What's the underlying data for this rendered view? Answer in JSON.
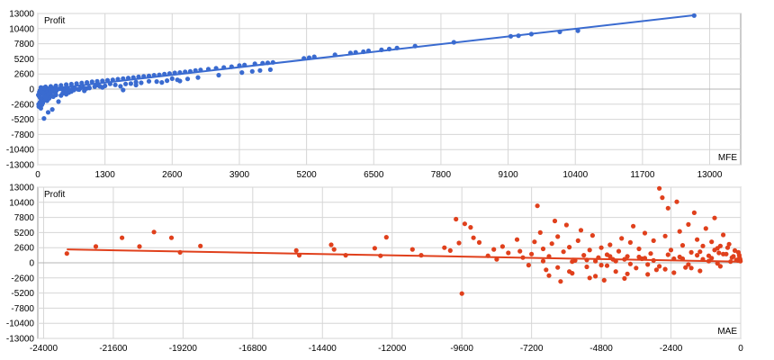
{
  "chart_data": [
    {
      "type": "scatter",
      "color": "#3a6bd0",
      "trendline_color": "#3a6bd0",
      "xlabel": "MFE",
      "ylabel": "Profit",
      "xlim": [
        0,
        13600
      ],
      "ylim": [
        -13000,
        13000
      ],
      "x_ticks": [
        "0",
        "1300",
        "2600",
        "3900",
        "5200",
        "6500",
        "7800",
        "9100",
        "10400",
        "11700",
        "13000"
      ],
      "y_ticks": [
        "13000",
        "10400",
        "7800",
        "5200",
        "2600",
        "0",
        "-2600",
        "-5200",
        "-7800",
        "-10400",
        "-13000"
      ],
      "grid": true,
      "trendline": [
        [
          0,
          -200
        ],
        [
          12700,
          12700
        ]
      ],
      "points": [
        [
          12700,
          12650
        ],
        [
          10450,
          10050
        ],
        [
          10100,
          9850
        ],
        [
          9550,
          9450
        ],
        [
          9300,
          9180
        ],
        [
          9150,
          9080
        ],
        [
          8050,
          8050
        ],
        [
          7300,
          7400
        ],
        [
          6950,
          7080
        ],
        [
          6800,
          6880
        ],
        [
          6650,
          6750
        ],
        [
          6400,
          6580
        ],
        [
          6300,
          6420
        ],
        [
          6150,
          6320
        ],
        [
          6050,
          6220
        ],
        [
          5750,
          5900
        ],
        [
          5350,
          5550
        ],
        [
          5250,
          5400
        ],
        [
          5150,
          5300
        ],
        [
          4550,
          4600
        ],
        [
          4450,
          4520
        ],
        [
          4350,
          4450
        ],
        [
          4200,
          4350
        ],
        [
          4000,
          4150
        ],
        [
          3900,
          4050
        ],
        [
          3750,
          3850
        ],
        [
          3600,
          3720
        ],
        [
          3450,
          3580
        ],
        [
          3300,
          3420
        ],
        [
          3150,
          3300
        ],
        [
          3050,
          3200
        ],
        [
          2950,
          3050
        ],
        [
          2850,
          2950
        ],
        [
          2750,
          2850
        ],
        [
          2650,
          2780
        ],
        [
          2550,
          2680
        ],
        [
          2450,
          2580
        ],
        [
          2350,
          2450
        ],
        [
          2250,
          2380
        ],
        [
          2150,
          2280
        ],
        [
          2050,
          2200
        ],
        [
          1950,
          2100
        ],
        [
          1850,
          2000
        ],
        [
          1750,
          1900
        ],
        [
          1650,
          1800
        ],
        [
          1550,
          1700
        ],
        [
          1450,
          1600
        ],
        [
          1350,
          1520
        ],
        [
          1250,
          1420
        ],
        [
          1150,
          1330
        ],
        [
          1050,
          1250
        ],
        [
          950,
          1150
        ],
        [
          850,
          1050
        ],
        [
          750,
          950
        ],
        [
          650,
          850
        ],
        [
          550,
          780
        ],
        [
          450,
          650
        ],
        [
          350,
          560
        ],
        [
          250,
          470
        ],
        [
          150,
          380
        ],
        [
          60,
          280
        ],
        [
          2900,
          1750
        ],
        [
          2600,
          1800
        ],
        [
          2150,
          1350
        ],
        [
          1900,
          1200
        ],
        [
          1650,
          -150
        ],
        [
          1900,
          700
        ],
        [
          1400,
          900
        ],
        [
          1150,
          700
        ],
        [
          900,
          -300
        ],
        [
          700,
          -150
        ],
        [
          600,
          -600
        ],
        [
          450,
          -1100
        ],
        [
          400,
          -2150
        ],
        [
          300,
          -1300
        ],
        [
          280,
          -3500
        ],
        [
          200,
          -4000
        ],
        [
          120,
          -5050
        ],
        [
          60,
          -3300
        ],
        [
          40,
          -2300
        ],
        [
          100,
          -1500
        ],
        [
          150,
          -700
        ],
        [
          80,
          -2700
        ],
        [
          180,
          -2000
        ],
        [
          250,
          -900
        ],
        [
          330,
          -500
        ],
        [
          500,
          -200
        ],
        [
          550,
          -900
        ],
        [
          20,
          -3000
        ],
        [
          10,
          -1000
        ],
        [
          30,
          -500
        ],
        [
          50,
          -200
        ],
        [
          70,
          100
        ],
        [
          90,
          -100
        ],
        [
          110,
          200
        ],
        [
          130,
          -300
        ],
        [
          160,
          0
        ],
        [
          190,
          -150
        ],
        [
          220,
          120
        ],
        [
          260,
          -50
        ],
        [
          310,
          150
        ],
        [
          360,
          -250
        ],
        [
          420,
          60
        ],
        [
          480,
          -80
        ],
        [
          520,
          130
        ],
        [
          580,
          40
        ],
        [
          620,
          -120
        ],
        [
          680,
          210
        ],
        [
          720,
          90
        ],
        [
          780,
          -40
        ],
        [
          820,
          160
        ],
        [
          880,
          240
        ],
        [
          940,
          110
        ],
        [
          990,
          300
        ],
        [
          1100,
          420
        ],
        [
          1200,
          480
        ],
        [
          1300,
          560
        ],
        [
          1500,
          720
        ],
        [
          1700,
          880
        ],
        [
          1800,
          940
        ],
        [
          2000,
          1080
        ],
        [
          2300,
          1300
        ],
        [
          2500,
          1450
        ],
        [
          2700,
          1600
        ],
        [
          3100,
          2000
        ],
        [
          3500,
          2400
        ],
        [
          3950,
          2850
        ],
        [
          4150,
          3050
        ],
        [
          4300,
          3200
        ],
        [
          4500,
          3350
        ],
        [
          2400,
          1150
        ],
        [
          2750,
          1400
        ],
        [
          1600,
          500
        ],
        [
          1250,
          300
        ],
        [
          1000,
          180
        ],
        [
          800,
          -80
        ],
        [
          650,
          -400
        ],
        [
          560,
          -600
        ],
        [
          480,
          -750
        ],
        [
          350,
          -1000
        ],
        [
          270,
          -1200
        ],
        [
          220,
          -1600
        ],
        [
          140,
          -1900
        ],
        [
          95,
          -2400
        ],
        [
          65,
          -2000
        ],
        [
          15,
          -2600
        ],
        [
          45,
          -1500
        ],
        [
          25,
          -1200
        ],
        [
          55,
          -800
        ],
        [
          75,
          -400
        ],
        [
          105,
          -700
        ],
        [
          125,
          -1100
        ],
        [
          165,
          -1300
        ],
        [
          205,
          -900
        ],
        [
          240,
          -600
        ],
        [
          290,
          -350
        ],
        [
          340,
          -700
        ]
      ]
    },
    {
      "type": "scatter",
      "color": "#e0401c",
      "trendline_color": "#e0401c",
      "xlabel": "MAE",
      "ylabel": "Profit",
      "xlim": [
        -24200,
        0
      ],
      "ylim": [
        -13000,
        13000
      ],
      "x_ticks": [
        "-24000",
        "-21600",
        "-19200",
        "-16800",
        "-14400",
        "-12000",
        "-9600",
        "-7200",
        "-4800",
        "-2400",
        "0"
      ],
      "y_ticks": [
        "13000",
        "10400",
        "7800",
        "5200",
        "2600",
        "0",
        "-2600",
        "-5200",
        "-7800",
        "-10400",
        "-13000"
      ],
      "grid": true,
      "trendline": [
        [
          -23200,
          2300
        ],
        [
          0,
          200
        ]
      ],
      "points": [
        [
          -23200,
          1600
        ],
        [
          -22200,
          2800
        ],
        [
          -21300,
          4300
        ],
        [
          -20700,
          2800
        ],
        [
          -20200,
          5300
        ],
        [
          -19600,
          4300
        ],
        [
          -19300,
          1800
        ],
        [
          -18600,
          2900
        ],
        [
          -15300,
          2100
        ],
        [
          -15200,
          1300
        ],
        [
          -14100,
          3100
        ],
        [
          -14000,
          2300
        ],
        [
          -13600,
          1300
        ],
        [
          -12600,
          2500
        ],
        [
          -12400,
          1200
        ],
        [
          -12200,
          4400
        ],
        [
          -11300,
          2300
        ],
        [
          -11000,
          1300
        ],
        [
          -10200,
          2600
        ],
        [
          -10000,
          2100
        ],
        [
          -9800,
          7500
        ],
        [
          -9700,
          3400
        ],
        [
          -9600,
          -5300
        ],
        [
          -9500,
          6700
        ],
        [
          -9300,
          6100
        ],
        [
          -9200,
          4300
        ],
        [
          -9000,
          3500
        ],
        [
          -8700,
          1200
        ],
        [
          -8500,
          2300
        ],
        [
          -8400,
          600
        ],
        [
          -8200,
          2800
        ],
        [
          -8000,
          1700
        ],
        [
          -7700,
          4000
        ],
        [
          -7600,
          2000
        ],
        [
          -7500,
          900
        ],
        [
          -7300,
          -400
        ],
        [
          -7200,
          1500
        ],
        [
          -7100,
          3600
        ],
        [
          -7000,
          9800
        ],
        [
          -6900,
          5200
        ],
        [
          -6800,
          2400
        ],
        [
          -6700,
          -1200
        ],
        [
          -6600,
          1100
        ],
        [
          -6500,
          3300
        ],
        [
          -6400,
          7200
        ],
        [
          -6300,
          4500
        ],
        [
          -6200,
          -3200
        ],
        [
          -6100,
          1900
        ],
        [
          -6000,
          6500
        ],
        [
          -5900,
          2700
        ],
        [
          -5800,
          -1800
        ],
        [
          -5700,
          400
        ],
        [
          -5600,
          3800
        ],
        [
          -5500,
          5600
        ],
        [
          -5400,
          1300
        ],
        [
          -5300,
          -700
        ],
        [
          -5200,
          2200
        ],
        [
          -5100,
          4700
        ],
        [
          -5000,
          -2300
        ],
        [
          -4900,
          900
        ],
        [
          -4800,
          2600
        ],
        [
          -4700,
          -3000
        ],
        [
          -4600,
          1400
        ],
        [
          -4500,
          3100
        ],
        [
          -4400,
          600
        ],
        [
          -4300,
          -1500
        ],
        [
          -4200,
          2000
        ],
        [
          -4100,
          4200
        ],
        [
          -4000,
          -2700
        ],
        [
          -3900,
          1100
        ],
        [
          -3800,
          3500
        ],
        [
          -3700,
          6300
        ],
        [
          -3600,
          -900
        ],
        [
          -3500,
          2400
        ],
        [
          -3400,
          700
        ],
        [
          -3300,
          5100
        ],
        [
          -3200,
          -2000
        ],
        [
          -3100,
          1600
        ],
        [
          -3000,
          3800
        ],
        [
          -2900,
          -1200
        ],
        [
          -2800,
          12800
        ],
        [
          -2700,
          11200
        ],
        [
          -2600,
          4600
        ],
        [
          -2500,
          9400
        ],
        [
          -2400,
          2200
        ],
        [
          -2300,
          -1700
        ],
        [
          -2200,
          10500
        ],
        [
          -2100,
          5400
        ],
        [
          -2000,
          3000
        ],
        [
          -1900,
          -800
        ],
        [
          -1800,
          6600
        ],
        [
          -1700,
          1800
        ],
        [
          -1600,
          8600
        ],
        [
          -1500,
          4000
        ],
        [
          -1400,
          -1400
        ],
        [
          -1300,
          2900
        ],
        [
          -1200,
          5900
        ],
        [
          -1100,
          1200
        ],
        [
          -1000,
          3600
        ],
        [
          -900,
          7700
        ],
        [
          -800,
          2500
        ],
        [
          -700,
          -600
        ],
        [
          -600,
          4800
        ],
        [
          -500,
          1500
        ],
        [
          -400,
          3200
        ],
        [
          -300,
          900
        ],
        [
          -200,
          2100
        ],
        [
          -100,
          400
        ],
        [
          -50,
          1300
        ],
        [
          -20,
          600
        ],
        [
          -6800,
          300
        ],
        [
          -6300,
          -800
        ],
        [
          -5800,
          200
        ],
        [
          -5300,
          500
        ],
        [
          -4800,
          -400
        ],
        [
          -4300,
          300
        ],
        [
          -3800,
          -200
        ],
        [
          -3300,
          800
        ],
        [
          -2800,
          -600
        ],
        [
          -2300,
          700
        ],
        [
          -1800,
          -300
        ],
        [
          -1300,
          600
        ],
        [
          -800,
          -100
        ],
        [
          -350,
          200
        ],
        [
          -6600,
          -2200
        ],
        [
          -5900,
          -1500
        ],
        [
          -5200,
          -2600
        ],
        [
          -4600,
          -500
        ],
        [
          -3900,
          -1900
        ],
        [
          -3200,
          -300
        ],
        [
          -2600,
          -1100
        ],
        [
          -2100,
          1000
        ],
        [
          -1700,
          -900
        ],
        [
          -1100,
          300
        ],
        [
          -750,
          1700
        ],
        [
          -450,
          2600
        ],
        [
          -250,
          1100
        ],
        [
          -150,
          500
        ],
        [
          -80,
          1800
        ],
        [
          -40,
          900
        ],
        [
          -10,
          300
        ],
        [
          -1500,
          1300
        ],
        [
          -1000,
          800
        ],
        [
          -600,
          1500
        ],
        [
          -700,
          2900
        ],
        [
          -900,
          2200
        ],
        [
          -1400,
          1900
        ],
        [
          -2000,
          700
        ],
        [
          -2500,
          1400
        ],
        [
          -3000,
          400
        ],
        [
          -3500,
          1000
        ],
        [
          -4000,
          600
        ],
        [
          -4500,
          1100
        ],
        [
          -5000,
          300
        ]
      ]
    }
  ]
}
